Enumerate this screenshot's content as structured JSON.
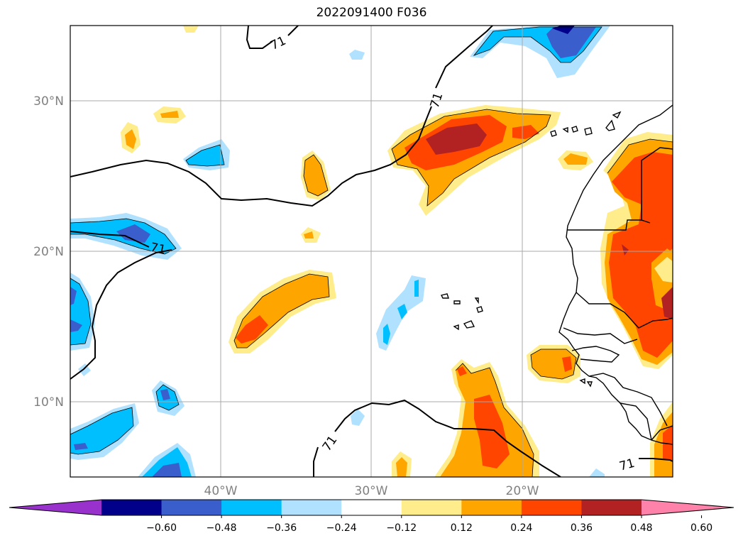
{
  "title": "2022091400 F036",
  "map": {
    "lon_range": [
      -50,
      -10
    ],
    "lat_range": [
      5,
      35
    ],
    "gridlines": true,
    "lat_ticks": [
      {
        "value": 30,
        "label": "30°N"
      },
      {
        "value": 20,
        "label": "20°N"
      },
      {
        "value": 10,
        "label": "10°N"
      }
    ],
    "lon_ticks": [
      {
        "value": -40,
        "label": "40°W"
      },
      {
        "value": -30,
        "label": "30°W"
      },
      {
        "value": -20,
        "label": "20°W"
      }
    ],
    "contour_value_label": "71"
  },
  "colorbar": {
    "levels": [
      -0.6,
      -0.48,
      -0.36,
      -0.24,
      -0.12,
      0.12,
      0.24,
      0.36,
      0.48,
      0.6
    ],
    "tick_labels": [
      "−0.60",
      "−0.48",
      "−0.36",
      "−0.24",
      "−0.12",
      "0.12",
      "0.24",
      "0.36",
      "0.48",
      "0.60"
    ],
    "colors": [
      "#9932cc",
      "#00008b",
      "#3a5fcd",
      "#00bfff",
      "#b0e2ff",
      "#ffffff",
      "#ffec8b",
      "#ffa500",
      "#ff4500",
      "#b22222",
      "#ff82ab"
    ],
    "extend": "both"
  },
  "colors": {
    "blue_dark": "#3a5fcd",
    "blue": "#00bfff",
    "blue_light": "#b0e2ff",
    "navy": "#00008b",
    "yellow": "#ffec8b",
    "orange": "#ffa500",
    "red_orange": "#ff4500",
    "dark_red": "#b22222"
  }
}
